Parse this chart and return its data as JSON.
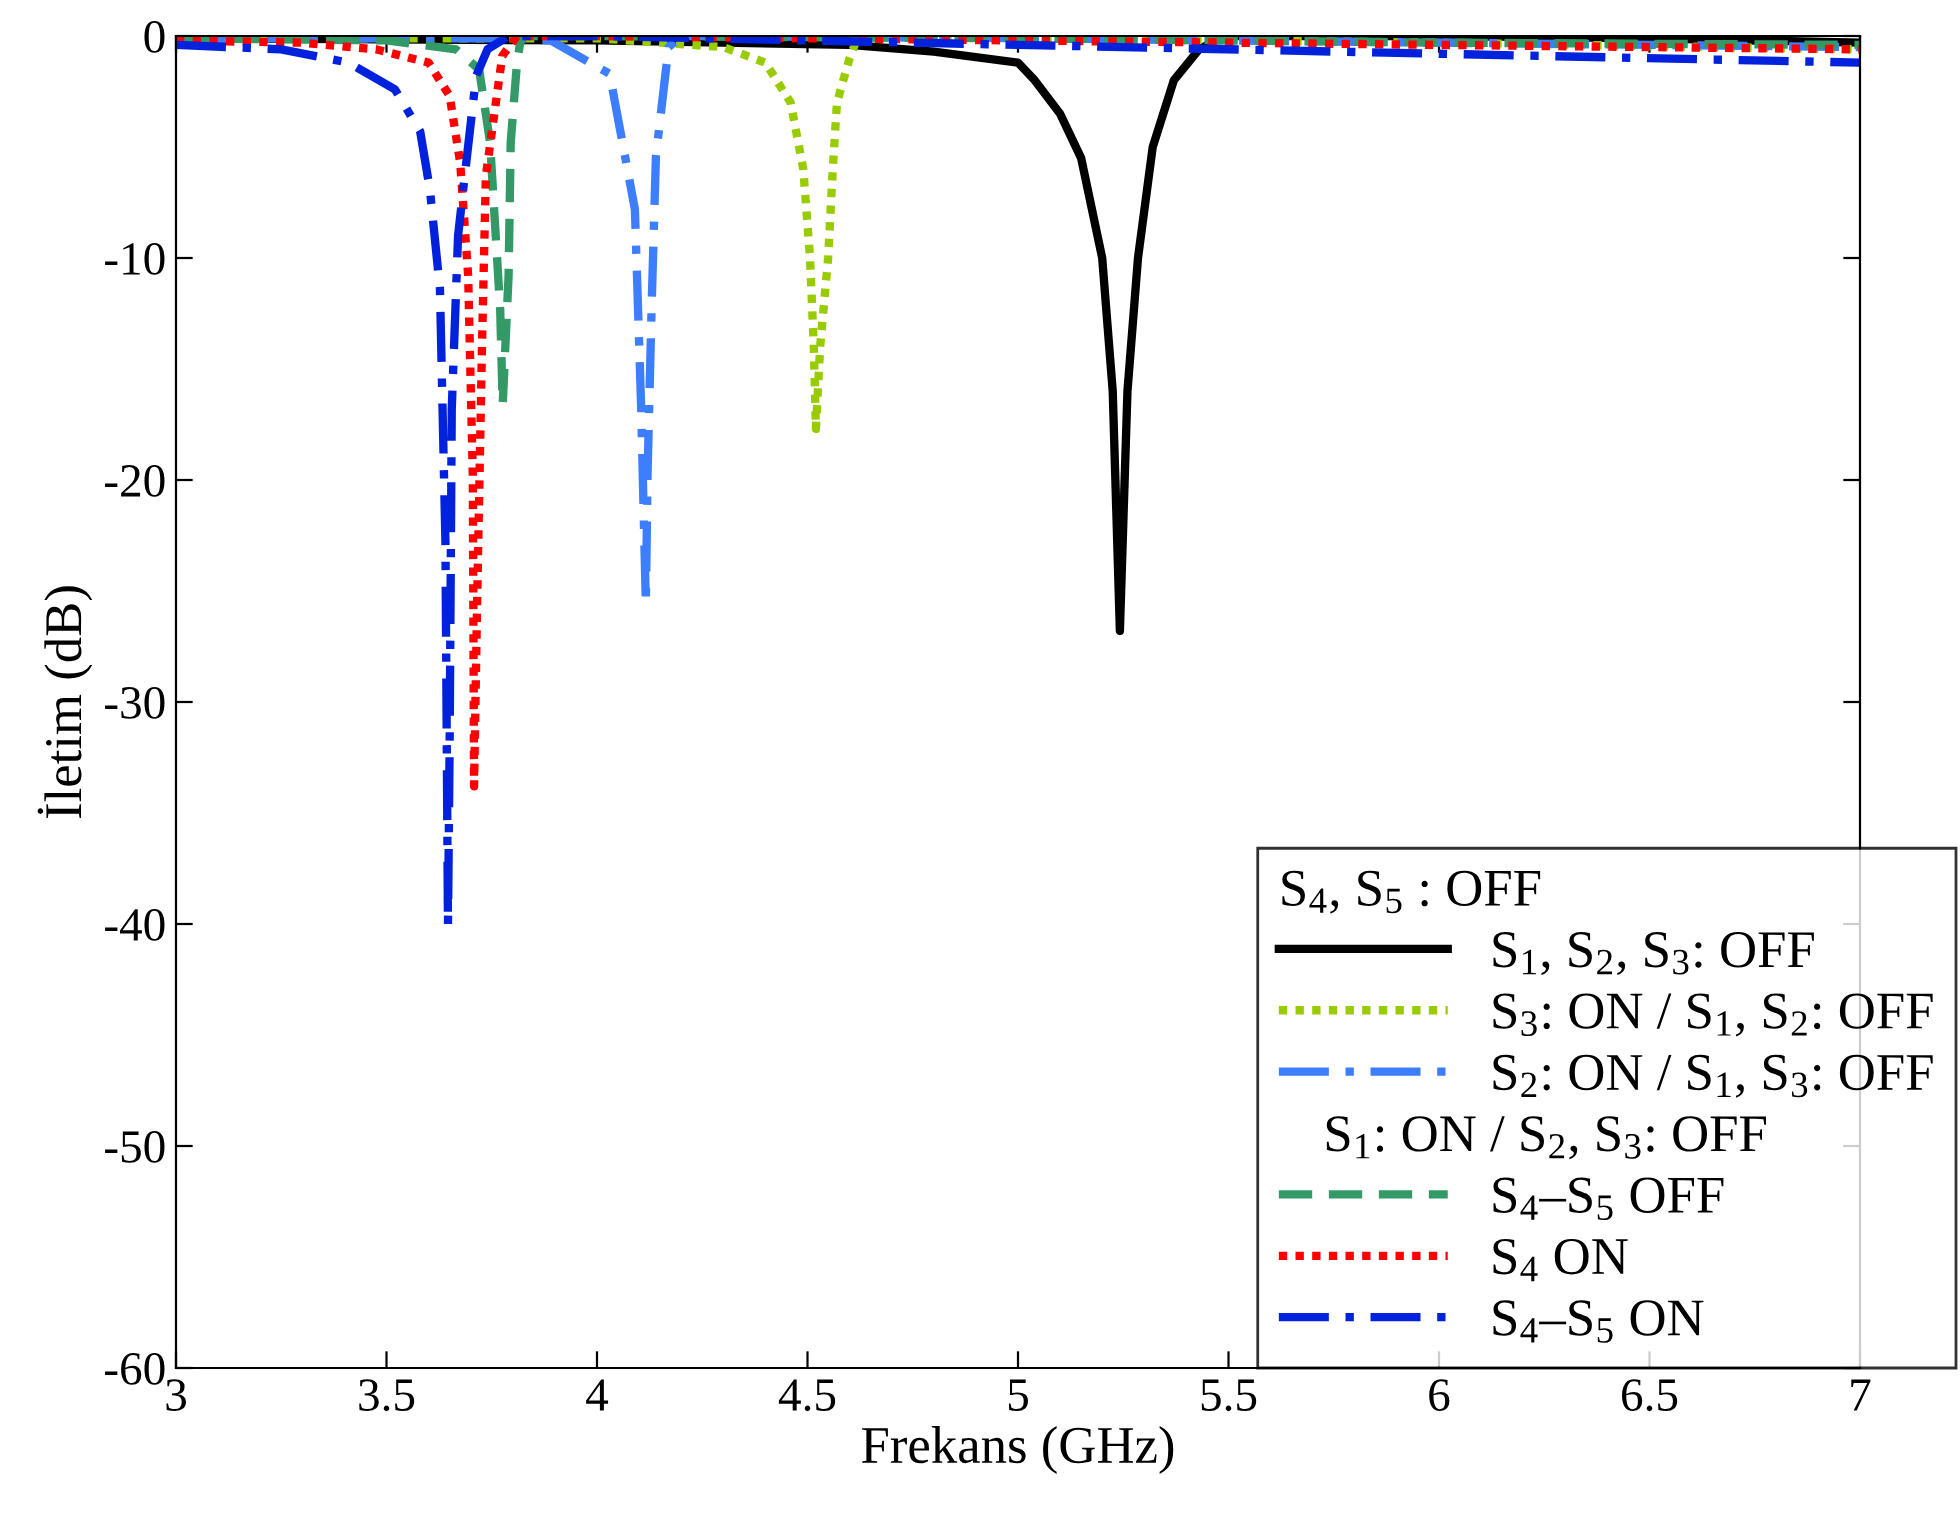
{
  "chart_data": {
    "type": "line",
    "xlabel": "Frekans (GHz)",
    "ylabel": "İletim (dB)",
    "legend_title": "S$_{4}$, S$_{5}$ : OFF",
    "annotations": [
      "S$_{1}$: ON / S$_{2}$, S$_{3}$: OFF"
    ],
    "xlim": [
      3,
      7
    ],
    "ylim": [
      -60,
      0
    ],
    "xticks": [
      3,
      3.5,
      4,
      4.5,
      5,
      5.5,
      6,
      6.5,
      7
    ],
    "yticks": [
      {
        "value": -60,
        "label": "-60"
      },
      {
        "value": -50,
        "label": "-50"
      },
      {
        "value": -40,
        "label": "-40"
      },
      {
        "value": -30,
        "label": "-30"
      },
      {
        "value": -20,
        "label": "-20"
      },
      {
        "value": -10,
        "label": "-10"
      },
      0
    ],
    "grid": false,
    "legend": "bottom right",
    "marker": "none",
    "series": [
      {
        "name": "S$_{1}$, S$_{2}$, S$_{3}$: OFF",
        "color": "#000000",
        "line_style": "solid",
        "x": [
          3,
          4,
          4.6,
          4.8,
          5.0,
          5.04,
          5.1,
          5.15,
          5.2,
          5.225,
          5.242,
          5.26,
          5.285,
          5.32,
          5.37,
          5.43,
          5.49,
          5.6,
          6,
          6.5,
          7
        ],
        "values": [
          -0.1,
          -0.2,
          -0.4,
          -0.7,
          -1.2,
          -2,
          -3.5,
          -5.5,
          -10,
          -16,
          -26.8,
          -16,
          -10,
          -5,
          -2,
          -0.6,
          0,
          0,
          0,
          -0.1,
          -0.3
        ]
      },
      {
        "name": "S$_{3}$: ON / S$_{1}$, S$_{2}$: OFF",
        "color": "#99cc00",
        "line_style": "dotted",
        "x": [
          3,
          4,
          4.3,
          4.4,
          4.46,
          4.49,
          4.506,
          4.515,
          4.52,
          4.53,
          4.549,
          4.56,
          4.57,
          4.6,
          4.62,
          5,
          6,
          7
        ],
        "values": [
          -0.1,
          -0.1,
          -0.5,
          -1.2,
          -3,
          -6,
          -10,
          -14,
          -17.7,
          -14,
          -10,
          -6,
          -3,
          -1,
          0,
          -0.1,
          -0.3,
          -0.6
        ]
      },
      {
        "name": "S$_{2}$: ON / S$_{1}$, S$_{3}$: OFF",
        "color": "#3d7eff",
        "line_style": "dashdot",
        "x": [
          3,
          3.8,
          3.89,
          4.03,
          4.09,
          4.105,
          4.116,
          4.12,
          4.13,
          4.14,
          4.17,
          4.2,
          5,
          6,
          7
        ],
        "values": [
          -0.1,
          -0.1,
          -0.2,
          -1.7,
          -7.8,
          -16.8,
          -25.6,
          -19.8,
          -12,
          -5.4,
          -0.5,
          0,
          -0.1,
          -0.3,
          -0.5
        ]
      },
      {
        "name": "S$_{4}$–S$_{5}$ OFF",
        "color": "#339966",
        "line_style": "dashed",
        "x": [
          3,
          3.5,
          3.665,
          3.72,
          3.746,
          3.77,
          3.776,
          3.79,
          3.795,
          3.81,
          3.82,
          4,
          5,
          6,
          7
        ],
        "values": [
          -0.1,
          -0.2,
          -0.6,
          -1.5,
          -4.8,
          -12.3,
          -16.6,
          -10.8,
          -4.8,
          -1.2,
          0,
          0,
          -0.1,
          -0.3,
          -0.4
        ]
      },
      {
        "name": "S$_{4}$ ON",
        "color": "#ff0000",
        "line_style": "dotted",
        "x": [
          3,
          3.3,
          3.475,
          3.6,
          3.65,
          3.675,
          3.694,
          3.705,
          3.708,
          3.715,
          3.727,
          3.736,
          3.775,
          3.81,
          4,
          5,
          6,
          7
        ],
        "values": [
          -0.2,
          -0.3,
          -0.6,
          -1.2,
          -2.7,
          -5.7,
          -10.8,
          -19.8,
          -33.8,
          -25.8,
          -13.8,
          -6.3,
          -0.9,
          0,
          0,
          -0.2,
          -0.4,
          -0.6
        ]
      },
      {
        "name": "S$_{4}$–S$_{5}$ ON",
        "color": "#0022dd",
        "line_style": "dashdot",
        "x": [
          3,
          3.25,
          3.41,
          3.52,
          3.58,
          3.603,
          3.627,
          3.64,
          3.646,
          3.65,
          3.655,
          3.67,
          3.684,
          3.713,
          3.74,
          3.79,
          4,
          5,
          6,
          7
        ],
        "values": [
          -0.4,
          -0.6,
          -1.2,
          -2.4,
          -4.3,
          -6.9,
          -11.4,
          -22.8,
          -40.1,
          -31.8,
          -16.8,
          -9,
          -6.6,
          -1.8,
          -0.6,
          0,
          0,
          -0.4,
          -0.8,
          -1.2
        ]
      }
    ]
  }
}
